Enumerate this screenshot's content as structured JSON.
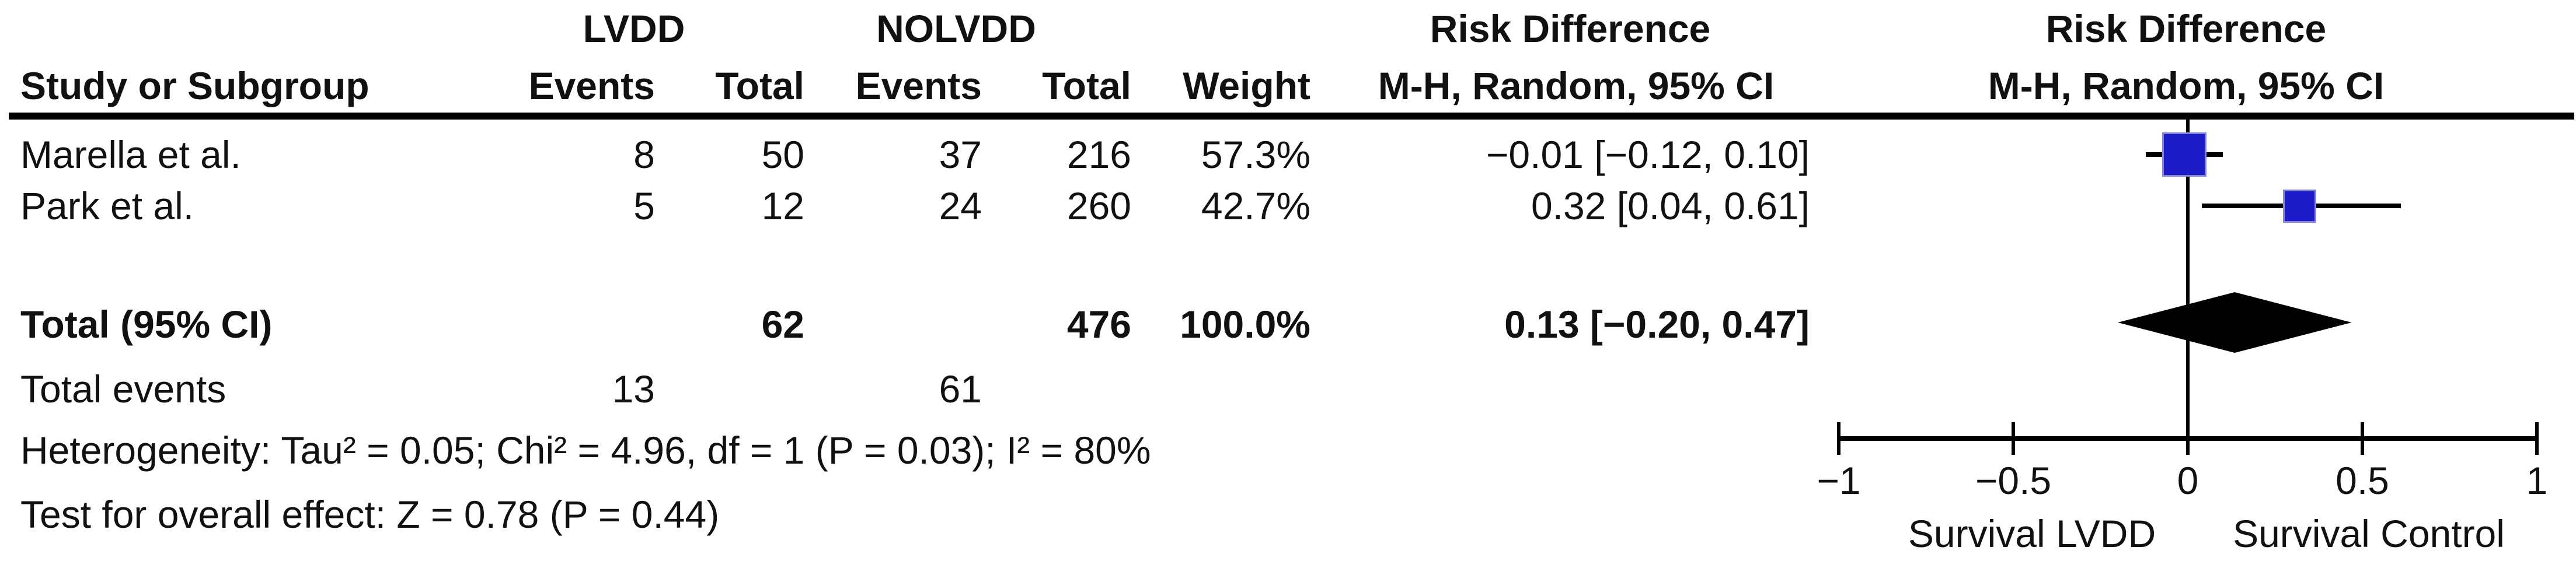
{
  "table": {
    "group1_label": "LVDD",
    "group2_label": "NOLVDD",
    "risk_difference_header": "Risk Difference",
    "headers": {
      "study": "Study or Subgroup",
      "events": "Events",
      "total": "Total",
      "events2": "Events",
      "total2": "Total",
      "weight": "Weight",
      "ci": "M-H, Random, 95% CI"
    },
    "studies": [
      {
        "name": "Marella et al.",
        "events1": "8",
        "total1": "50",
        "events2": "37",
        "total2": "216",
        "weight": "57.3%",
        "ci_text": "−0.01 [−0.12, 0.10]"
      },
      {
        "name": "Park et al.",
        "events1": "5",
        "total1": "12",
        "events2": "24",
        "total2": "260",
        "weight": "42.7%",
        "ci_text": "0.32 [0.04, 0.61]"
      }
    ],
    "total_row": {
      "label": "Total (95% CI)",
      "total1": "62",
      "total2": "476",
      "weight": "100.0%",
      "ci_text": "0.13 [−0.20, 0.47]"
    },
    "total_events_row": {
      "label": "Total events",
      "events1": "13",
      "events2": "61"
    },
    "heterogeneity_line": "Heterogeneity: Tau² = 0.05; Chi² = 4.96, df = 1 (P = 0.03); I² = 80%",
    "overall_effect_line": "Test for overall effect: Z = 0.78 (P = 0.44)"
  },
  "chart_data": {
    "type": "scatter",
    "subtype": "forest-plot",
    "title": "Risk Difference",
    "subtitle": "M-H, Random, 95% CI",
    "axis": {
      "min": -1,
      "max": 1,
      "ticks": [
        -1,
        -0.5,
        0,
        0.5,
        1
      ],
      "tick_labels": [
        "−1",
        "−0.5",
        "0",
        "0.5",
        "1"
      ]
    },
    "x_caption_left": "Survival LVDD",
    "x_caption_right": "Survival Control",
    "series": [
      {
        "name": "Marella et al.",
        "estimate": -0.01,
        "ci_low": -0.12,
        "ci_high": 0.1,
        "weight_pct": 57.3
      },
      {
        "name": "Park et al.",
        "estimate": 0.32,
        "ci_low": 0.04,
        "ci_high": 0.61,
        "weight_pct": 42.7
      }
    ],
    "overall": {
      "label": "Total (95% CI)",
      "estimate": 0.13,
      "ci_low": -0.2,
      "ci_high": 0.47
    },
    "colors": {
      "study_marker": "#1C1CC9",
      "study_marker_edge": "#8585E0",
      "overall_diamond": "#000000",
      "lines": "#000000"
    }
  }
}
